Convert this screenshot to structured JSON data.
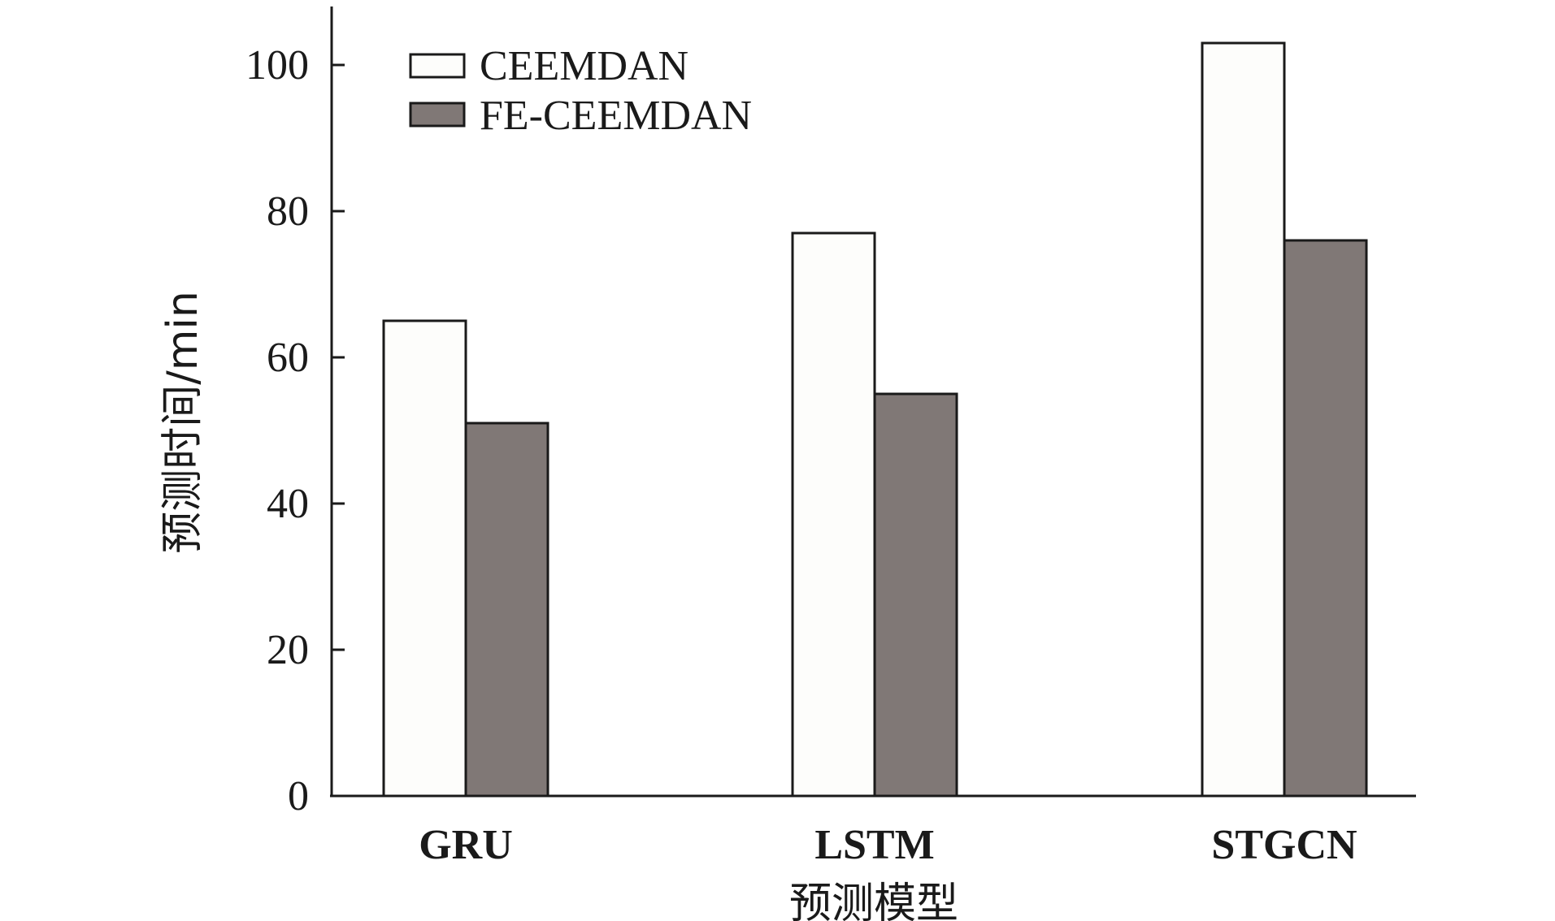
{
  "chart_data": {
    "type": "bar",
    "title": "",
    "xlabel": "预测模型",
    "ylabel": "预测时间/min",
    "categories": [
      "GRU",
      "LSTM",
      "STGCN"
    ],
    "series": [
      {
        "name": "CEEMDAN",
        "values": [
          65,
          77,
          103
        ],
        "color": "#fdfdfb"
      },
      {
        "name": "FE-CEEMDAN",
        "values": [
          51,
          55,
          76
        ],
        "color": "#807876"
      }
    ],
    "ylim": [
      0,
      108
    ],
    "yticks": [
      0,
      20,
      40,
      60,
      80,
      100
    ],
    "grid": false,
    "legend_position": "top-left"
  }
}
